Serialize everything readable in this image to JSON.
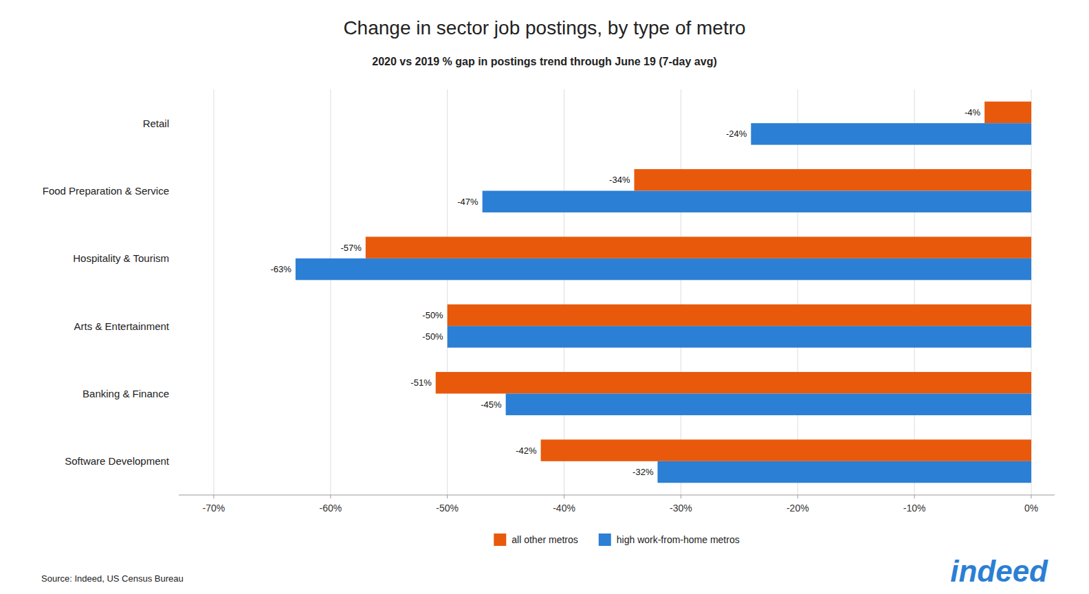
{
  "chart_data": {
    "type": "bar",
    "orientation": "horizontal",
    "title": "Change in sector job postings, by type of metro",
    "subtitle": "2020 vs 2019 % gap in postings trend through June 19 (7-day avg)",
    "categories": [
      "Retail",
      "Food Preparation & Service",
      "Hospitality & Tourism",
      "Arts & Entertainment",
      "Banking & Finance",
      "Software Development"
    ],
    "series": [
      {
        "name": "all other metros",
        "color": "#E8590C",
        "values": [
          -4,
          -34,
          -57,
          -50,
          -51,
          -42
        ],
        "value_labels": [
          "-4%",
          "-34%",
          "-57%",
          "-50%",
          "-51%",
          "-42%"
        ]
      },
      {
        "name": "high work-from-home metros",
        "color": "#2B7FD4",
        "values": [
          -24,
          -47,
          -63,
          -50,
          -45,
          -32
        ],
        "value_labels": [
          "-24%",
          "-47%",
          "-63%",
          "-50%",
          "-45%",
          "-32%"
        ]
      }
    ],
    "xlim": [
      -73,
      2
    ],
    "xticks": [
      {
        "value": -70,
        "label": "-70%"
      },
      {
        "value": -60,
        "label": "-60%"
      },
      {
        "value": -50,
        "label": "-50%"
      },
      {
        "value": -40,
        "label": "-40%"
      },
      {
        "value": -30,
        "label": "-30%"
      },
      {
        "value": -20,
        "label": "-20%"
      },
      {
        "value": -10,
        "label": "-10%"
      },
      {
        "value": 0,
        "label": "0%"
      }
    ],
    "grid": true,
    "data_labels": true,
    "legend": "bottom",
    "annotations": [
      {
        "text": "Source: Indeed, US Census Bureau"
      },
      {
        "text": "indeed",
        "color": "#2B7FD4"
      }
    ]
  }
}
